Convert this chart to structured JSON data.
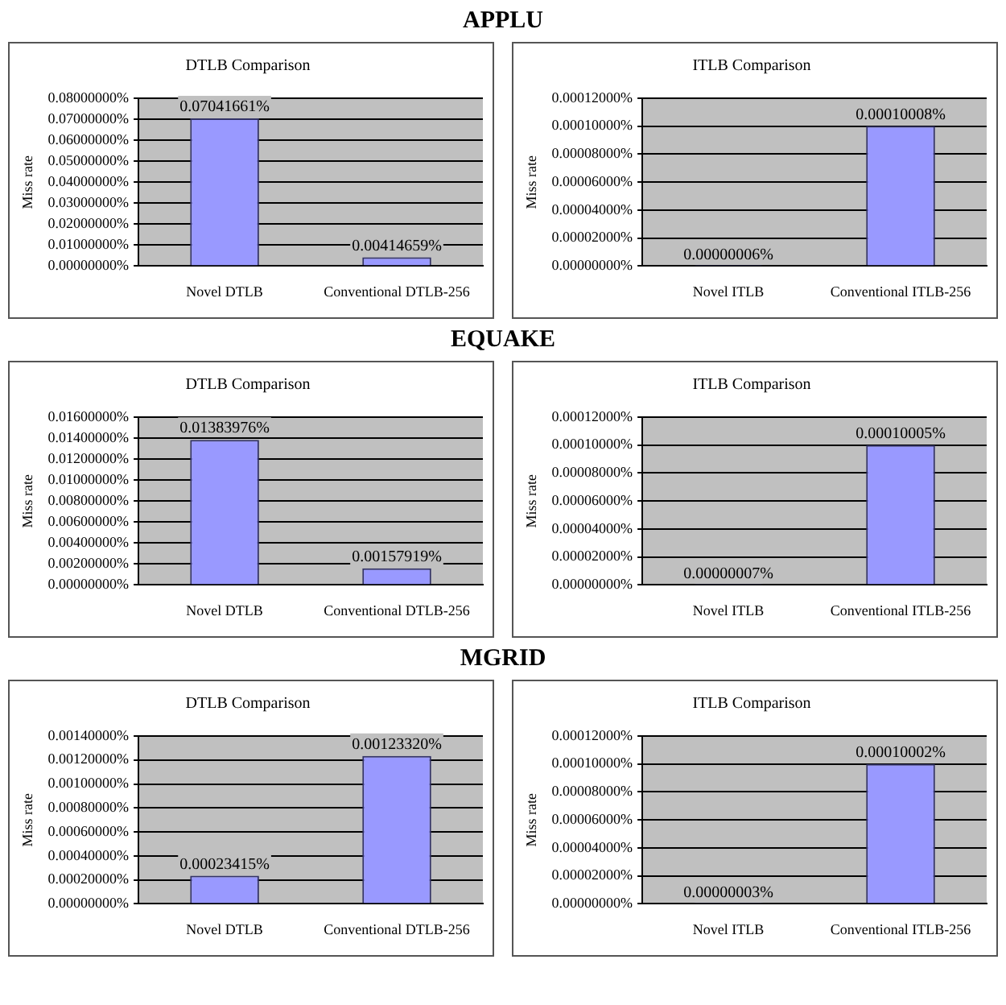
{
  "chart_data": [
    {
      "type": "bar",
      "title": "DTLB Comparison",
      "annotations": [
        "APPLU"
      ],
      "ylabel": "Miss rate",
      "categories": [
        "Novel DTLB",
        "Conventional DTLB-256"
      ],
      "values": [
        0.07041661,
        0.00414659
      ],
      "value_labels": [
        "0.07041661%",
        "0.00414659%"
      ],
      "color": "#9999ff",
      "ylim": [
        0,
        0.08
      ],
      "yticks": [
        {
          "value": 0,
          "label": "0.00000000%"
        },
        {
          "value": 0.01,
          "label": "0.01000000%"
        },
        {
          "value": 0.02,
          "label": "0.02000000%"
        },
        {
          "value": 0.03,
          "label": "0.03000000%"
        },
        {
          "value": 0.04,
          "label": "0.04000000%"
        },
        {
          "value": 0.05,
          "label": "0.05000000%"
        },
        {
          "value": 0.06,
          "label": "0.06000000%"
        },
        {
          "value": 0.07,
          "label": "0.07000000%"
        },
        {
          "value": 0.08,
          "label": "0.08000000%"
        }
      ],
      "grid": "y",
      "legend": false
    },
    {
      "type": "bar",
      "title": "ITLB Comparison",
      "ylabel": "Miss rate",
      "categories": [
        "Novel ITLB",
        "Conventional ITLB-256"
      ],
      "values": [
        6e-08,
        0.00010008
      ],
      "value_labels": [
        "0.00000006%",
        "0.00010008%"
      ],
      "color": "#9999ff",
      "ylim": [
        0,
        0.00012
      ],
      "yticks": [
        {
          "value": 0,
          "label": "0.00000000%"
        },
        {
          "value": 2e-05,
          "label": "0.00002000%"
        },
        {
          "value": 4e-05,
          "label": "0.00004000%"
        },
        {
          "value": 6e-05,
          "label": "0.00006000%"
        },
        {
          "value": 8e-05,
          "label": "0.00008000%"
        },
        {
          "value": 0.0001,
          "label": "0.00010000%"
        },
        {
          "value": 0.00012,
          "label": "0.00012000%"
        }
      ],
      "grid": "y",
      "legend": false
    },
    {
      "type": "bar",
      "title": "DTLB Comparison",
      "annotations": [
        "EQUAKE"
      ],
      "ylabel": "Miss rate",
      "categories": [
        "Novel DTLB",
        "Conventional DTLB-256"
      ],
      "values": [
        0.01383976,
        0.00157919
      ],
      "value_labels": [
        "0.01383976%",
        "0.00157919%"
      ],
      "color": "#9999ff",
      "ylim": [
        0,
        0.016
      ],
      "yticks": [
        {
          "value": 0,
          "label": "0.00000000%"
        },
        {
          "value": 0.002,
          "label": "0.00200000%"
        },
        {
          "value": 0.004,
          "label": "0.00400000%"
        },
        {
          "value": 0.006,
          "label": "0.00600000%"
        },
        {
          "value": 0.008,
          "label": "0.00800000%"
        },
        {
          "value": 0.01,
          "label": "0.01000000%"
        },
        {
          "value": 0.012,
          "label": "0.01200000%"
        },
        {
          "value": 0.014,
          "label": "0.01400000%"
        },
        {
          "value": 0.016,
          "label": "0.01600000%"
        }
      ],
      "grid": "y",
      "legend": false
    },
    {
      "type": "bar",
      "title": "ITLB Comparison",
      "ylabel": "Miss rate",
      "categories": [
        "Novel ITLB",
        "Conventional ITLB-256"
      ],
      "values": [
        7e-08,
        0.00010005
      ],
      "value_labels": [
        "0.00000007%",
        "0.00010005%"
      ],
      "color": "#9999ff",
      "ylim": [
        0,
        0.00012
      ],
      "yticks": [
        {
          "value": 0,
          "label": "0.00000000%"
        },
        {
          "value": 2e-05,
          "label": "0.00002000%"
        },
        {
          "value": 4e-05,
          "label": "0.00004000%"
        },
        {
          "value": 6e-05,
          "label": "0.00006000%"
        },
        {
          "value": 8e-05,
          "label": "0.00008000%"
        },
        {
          "value": 0.0001,
          "label": "0.00010000%"
        },
        {
          "value": 0.00012,
          "label": "0.00012000%"
        }
      ],
      "grid": "y",
      "legend": false
    },
    {
      "type": "bar",
      "title": "DTLB Comparison",
      "annotations": [
        "MGRID"
      ],
      "ylabel": "Miss rate",
      "categories": [
        "Novel DTLB",
        "Conventional DTLB-256"
      ],
      "values": [
        0.00023415,
        0.0012332
      ],
      "value_labels": [
        "0.00023415%",
        "0.00123320%"
      ],
      "color": "#9999ff",
      "ylim": [
        0,
        0.0014
      ],
      "yticks": [
        {
          "value": 0,
          "label": "0.00000000%"
        },
        {
          "value": 0.0002,
          "label": "0.00020000%"
        },
        {
          "value": 0.0004,
          "label": "0.00040000%"
        },
        {
          "value": 0.0006,
          "label": "0.00060000%"
        },
        {
          "value": 0.0008,
          "label": "0.00080000%"
        },
        {
          "value": 0.001,
          "label": "0.00100000%"
        },
        {
          "value": 0.0012,
          "label": "0.00120000%"
        },
        {
          "value": 0.0014,
          "label": "0.00140000%"
        }
      ],
      "grid": "y",
      "legend": false
    },
    {
      "type": "bar",
      "title": "ITLB Comparison",
      "ylabel": "Miss rate",
      "categories": [
        "Novel ITLB",
        "Conventional ITLB-256"
      ],
      "values": [
        3e-08,
        0.00010002
      ],
      "value_labels": [
        "0.00000003%",
        "0.00010002%"
      ],
      "color": "#9999ff",
      "ylim": [
        0,
        0.00012
      ],
      "yticks": [
        {
          "value": 0,
          "label": "0.00000000%"
        },
        {
          "value": 2e-05,
          "label": "0.00002000%"
        },
        {
          "value": 4e-05,
          "label": "0.00004000%"
        },
        {
          "value": 6e-05,
          "label": "0.00006000%"
        },
        {
          "value": 8e-05,
          "label": "0.00008000%"
        },
        {
          "value": 0.0001,
          "label": "0.00010000%"
        },
        {
          "value": 0.00012,
          "label": "0.00012000%"
        }
      ],
      "grid": "y",
      "legend": false
    }
  ]
}
